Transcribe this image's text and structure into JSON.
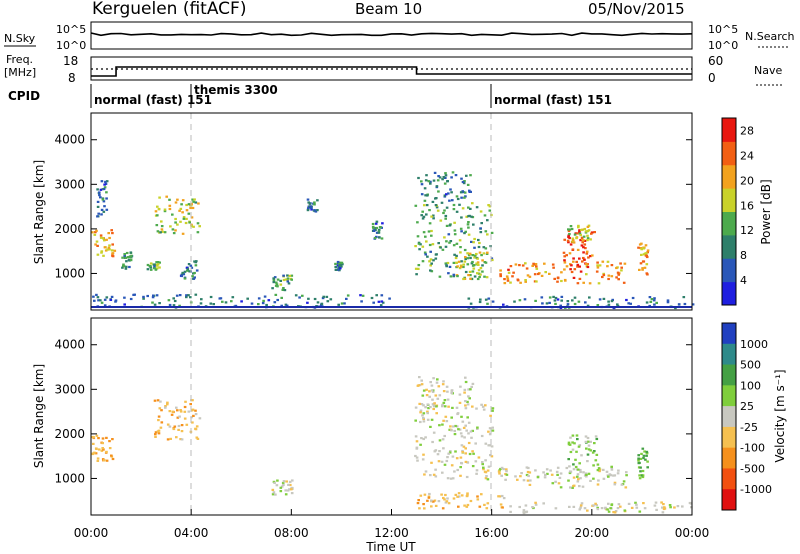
{
  "header": {
    "station": "Kerguelen (fitACF)",
    "beam": "Beam 10",
    "date": "05/Nov/2015"
  },
  "noise_panel": {
    "left_label": "N.Sky",
    "left_ticks": [
      "10^5",
      "10^0"
    ],
    "right_ticks": [
      "10^5",
      "10^0"
    ],
    "right_label": "N.Search"
  },
  "freq_panel": {
    "left_label_line1": "Freq.",
    "left_label_line2": "[MHz]",
    "left_ticks": [
      "18",
      "8"
    ],
    "right_ticks": [
      "60",
      "0"
    ],
    "right_label": "Nave"
  },
  "cpid_panel": {
    "label": "CPID",
    "segments": [
      {
        "text": "normal (fast) 151",
        "start_hour": 0
      },
      {
        "text": "themis 3300",
        "start_hour": 4
      },
      {
        "text": "normal (fast) 151",
        "start_hour": 16
      }
    ]
  },
  "colors": {
    "frame": "#000000",
    "dashed_marker": "#bbbbbb",
    "ground_line": "#1a2aa8"
  },
  "chart_data": [
    {
      "type": "heatmap",
      "name": "power",
      "ylabel": "Slant Range [km]",
      "yticks": [
        "1000",
        "2000",
        "3000",
        "4000"
      ],
      "ylim": [
        180,
        4600
      ],
      "xlim": [
        0,
        24
      ],
      "colorbar_label": "Power [dB]",
      "colorbar_ticks": [
        "4",
        "8",
        "12",
        "16",
        "20",
        "24",
        "28"
      ],
      "colorbar_range": [
        0,
        30
      ],
      "colorbar_colors": [
        "#1f1fe0",
        "#2a57b8",
        "#2e7f6a",
        "#4daa4d",
        "#c9d22a",
        "#f2a21e",
        "#f25f13",
        "#e8170f"
      ],
      "patches": [
        {
          "t0": 0.0,
          "t1": 0.9,
          "r0": 1400,
          "r1": 2000,
          "level": 20
        },
        {
          "t0": 0.2,
          "t1": 0.6,
          "r0": 2300,
          "r1": 3100,
          "level": 8
        },
        {
          "t0": 1.2,
          "t1": 1.6,
          "r0": 1100,
          "r1": 1500,
          "level": 10
        },
        {
          "t0": 2.5,
          "t1": 4.3,
          "r0": 1900,
          "r1": 2800,
          "level": 16
        },
        {
          "t0": 2.2,
          "t1": 2.7,
          "r0": 1100,
          "r1": 1300,
          "level": 12
        },
        {
          "t0": 3.5,
          "t1": 4.2,
          "r0": 900,
          "r1": 1300,
          "level": 8
        },
        {
          "t0": 7.2,
          "t1": 8.0,
          "r0": 650,
          "r1": 1000,
          "level": 12
        },
        {
          "t0": 8.6,
          "t1": 9.0,
          "r0": 2400,
          "r1": 2700,
          "level": 8
        },
        {
          "t0": 9.7,
          "t1": 10.0,
          "r0": 1100,
          "r1": 1300,
          "level": 8
        },
        {
          "t0": 11.2,
          "t1": 11.6,
          "r0": 1800,
          "r1": 2200,
          "level": 8
        },
        {
          "t0": 12.9,
          "t1": 16.0,
          "r0": 900,
          "r1": 2600,
          "level": 12
        },
        {
          "t0": 13.0,
          "t1": 15.2,
          "r0": 2600,
          "r1": 3300,
          "level": 8
        },
        {
          "t0": 14.5,
          "t1": 15.8,
          "r0": 900,
          "r1": 1500,
          "level": 16
        },
        {
          "t0": 16.2,
          "t1": 21.4,
          "r0": 800,
          "r1": 1300,
          "level": 22
        },
        {
          "t0": 18.8,
          "t1": 20.2,
          "r0": 1100,
          "r1": 2000,
          "level": 26
        },
        {
          "t0": 19.0,
          "t1": 19.9,
          "r0": 1700,
          "r1": 2100,
          "level": 16
        },
        {
          "t0": 21.8,
          "t1": 22.2,
          "r0": 1000,
          "r1": 1700,
          "level": 20
        },
        {
          "t0": 15.0,
          "t1": 24.0,
          "r0": 250,
          "r1": 500,
          "level": 8
        },
        {
          "t0": 0.0,
          "t1": 12.0,
          "r0": 250,
          "r1": 550,
          "level": 8
        }
      ]
    },
    {
      "type": "heatmap",
      "name": "velocity",
      "ylabel": "Slant Range [km]",
      "xlabel": "Time UT",
      "xticks": [
        "00:00",
        "04:00",
        "08:00",
        "12:00",
        "16:00",
        "20:00",
        "00:00"
      ],
      "yticks": [
        "1000",
        "2000",
        "3000",
        "4000"
      ],
      "ylim": [
        180,
        4600
      ],
      "xlim": [
        0,
        24
      ],
      "colorbar_label": "Velocity [m s⁻¹]",
      "colorbar_ticks": [
        "1000",
        "500",
        "100",
        "25",
        "-25",
        "-100",
        "-500",
        "-1000"
      ],
      "colorbar_range": [
        -1200,
        1200
      ],
      "colorbar_colors": [
        "#2040c0",
        "#2e8a8a",
        "#44a044",
        "#7fce3c",
        "#c8c8c0",
        "#f5c050",
        "#f5901c",
        "#f25010",
        "#e01010"
      ],
      "patches": [
        {
          "t0": 0.0,
          "t1": 0.9,
          "r0": 1400,
          "r1": 2000,
          "level": -400
        },
        {
          "t0": 2.5,
          "t1": 4.3,
          "r0": 1900,
          "r1": 2800,
          "level": -300
        },
        {
          "t0": 7.2,
          "t1": 8.0,
          "r0": 650,
          "r1": 1000,
          "level": 0
        },
        {
          "t0": 12.9,
          "t1": 16.0,
          "r0": 1000,
          "r1": 2700,
          "level": 0
        },
        {
          "t0": 13.0,
          "t1": 15.2,
          "r0": 2600,
          "r1": 3300,
          "level": 0
        },
        {
          "t0": 16.2,
          "t1": 21.4,
          "r0": 800,
          "r1": 1300,
          "level": 0
        },
        {
          "t0": 19.0,
          "t1": 20.2,
          "r0": 1100,
          "r1": 2000,
          "level": 200
        },
        {
          "t0": 13.0,
          "t1": 16.5,
          "r0": 350,
          "r1": 700,
          "level": -300
        },
        {
          "t0": 16.5,
          "t1": 24.0,
          "r0": 250,
          "r1": 500,
          "level": 0
        },
        {
          "t0": 21.8,
          "t1": 22.2,
          "r0": 1000,
          "r1": 1700,
          "level": 400
        }
      ]
    }
  ]
}
